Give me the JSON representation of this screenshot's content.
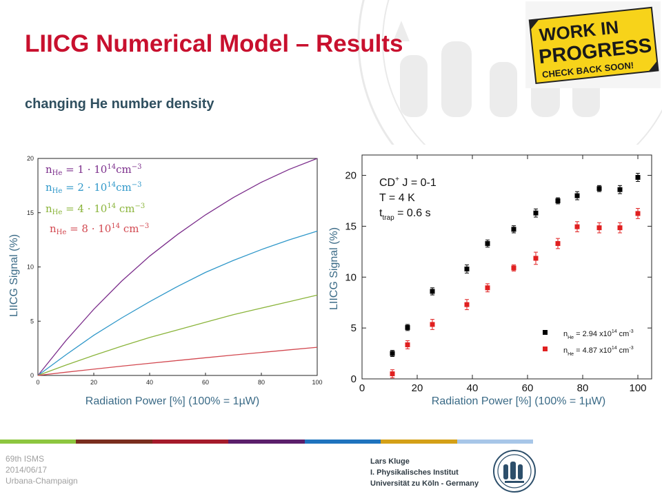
{
  "slide": {
    "title": "LIICG Numerical Model – Results",
    "subtitle": "changing He number density",
    "badge": {
      "line1": "WORK IN",
      "line2": "PROGRESS",
      "line3": "CHECK BACK SOON!"
    },
    "footer": {
      "conference": "69th ISMS",
      "date": "2014/06/17",
      "location": "Urbana-Champaign",
      "author": "Lars Kluge",
      "institute": "I. Physikalisches Institut",
      "university": "Universität zu Köln - Germany",
      "colors": [
        "#8dc63f",
        "#7a2e1f",
        "#a51b2b",
        "#5b1f6b",
        "#1e73be",
        "#d4a017",
        "#a7c6e8"
      ]
    }
  },
  "chart_data": [
    {
      "type": "line",
      "xlabel": "Radiation Power [%] (100% = 1µW)",
      "ylabel": "LIICG Signal (%)",
      "xlim": [
        0,
        100
      ],
      "ylim": [
        0,
        20
      ],
      "xticks": [
        "0",
        "20",
        "40",
        "60",
        "80",
        "100"
      ],
      "yticks": [
        "0",
        "5",
        "10",
        "15",
        "20"
      ],
      "grid": false,
      "legend_position": "top-left",
      "x": [
        0,
        10,
        20,
        30,
        40,
        50,
        60,
        70,
        80,
        90,
        100
      ],
      "series": [
        {
          "name": "n_He = 1 · 10^14 cm^-3",
          "label_main": "n",
          "label_sub": "He",
          "label_rest": " = 1 · 10",
          "label_exp": "14",
          "label_unit": "cm",
          "label_unit_exp": "−3",
          "color": "#7b2d8b",
          "values": [
            0,
            3.2,
            6.1,
            8.7,
            11.0,
            13.0,
            14.8,
            16.4,
            17.8,
            19.0,
            20.0
          ]
        },
        {
          "name": "n_He = 2 · 10^14 cm^-3",
          "label_main": "n",
          "label_sub": "He",
          "label_rest": " = 2 · 10",
          "label_exp": "14",
          "label_unit": "cm",
          "label_unit_exp": "−3",
          "color": "#2e97c9",
          "values": [
            0,
            1.9,
            3.7,
            5.3,
            6.8,
            8.2,
            9.5,
            10.6,
            11.6,
            12.5,
            13.3
          ]
        },
        {
          "name": "n_He = 4 · 10^14 cm^-3",
          "label_main": "n",
          "label_sub": "He",
          "label_rest": " = 4 · 10",
          "label_exp": "14",
          "label_unit": " cm",
          "label_unit_exp": "−3",
          "color": "#8ab43a",
          "values": [
            0,
            0.95,
            1.85,
            2.7,
            3.5,
            4.2,
            4.9,
            5.6,
            6.2,
            6.8,
            7.4
          ]
        },
        {
          "name": "n_He = 8 · 10^14 cm^-3",
          "label_main": "n",
          "label_sub": "He",
          "label_rest": " = 8 · 10",
          "label_exp": "14",
          "label_unit": " cm",
          "label_unit_exp": "−3",
          "color": "#d2474f",
          "values": [
            0,
            0.3,
            0.58,
            0.86,
            1.12,
            1.38,
            1.63,
            1.88,
            2.12,
            2.36,
            2.6
          ]
        }
      ]
    },
    {
      "type": "scatter",
      "xlabel": "Radiation Power [%] (100% = 1µW)",
      "ylabel": "LIICG Signal (%)",
      "xlim": [
        0,
        105
      ],
      "ylim": [
        0,
        22
      ],
      "xticks": [
        "0",
        "20",
        "40",
        "60",
        "80",
        "100"
      ],
      "yticks": [
        "0",
        "5",
        "10",
        "15",
        "20"
      ],
      "grid": false,
      "legend_position": "bottom-right",
      "annotation": {
        "line1_a": "CD",
        "line1_sup": "+",
        "line1_b": " J = 0-1",
        "line2": "T = 4 K",
        "line3_a": "t",
        "line3_sub": "trap",
        "line3_b": " = 0.6 s"
      },
      "series": [
        {
          "name": "n_He = 2.94 x10^14 cm^-3",
          "label_a": "n",
          "label_sub": "He",
          "label_b": " = 2.94 x10",
          "label_sup": "14",
          "label_c": " cm",
          "label_sup2": "-3",
          "color": "#000000",
          "x": [
            11,
            16.5,
            25.5,
            38,
            45.5,
            55,
            63,
            71,
            78,
            86,
            93.5,
            100
          ],
          "values": [
            2.5,
            5.05,
            8.6,
            10.8,
            13.3,
            14.7,
            16.3,
            17.5,
            18.0,
            18.7,
            18.6,
            19.8
          ],
          "errors": [
            0.3,
            0.3,
            0.35,
            0.4,
            0.35,
            0.35,
            0.4,
            0.3,
            0.4,
            0.3,
            0.4,
            0.4
          ]
        },
        {
          "name": "n_He = 4.87 x10^14 cm^-3",
          "label_a": "n",
          "label_sub": "He",
          "label_b": " = 4.87 x10",
          "label_sup": "14",
          "label_c": " cm",
          "label_sup2": "-3",
          "color": "#e02020",
          "x": [
            11,
            16.5,
            25.5,
            38,
            45.5,
            55,
            63,
            71,
            78,
            86,
            93.5,
            100
          ],
          "values": [
            0.5,
            3.35,
            5.35,
            7.3,
            8.95,
            10.9,
            11.85,
            13.3,
            14.95,
            14.85,
            14.85,
            16.25
          ],
          "errors": [
            0.4,
            0.4,
            0.5,
            0.5,
            0.4,
            0.3,
            0.6,
            0.5,
            0.5,
            0.5,
            0.5,
            0.5
          ]
        }
      ]
    }
  ]
}
